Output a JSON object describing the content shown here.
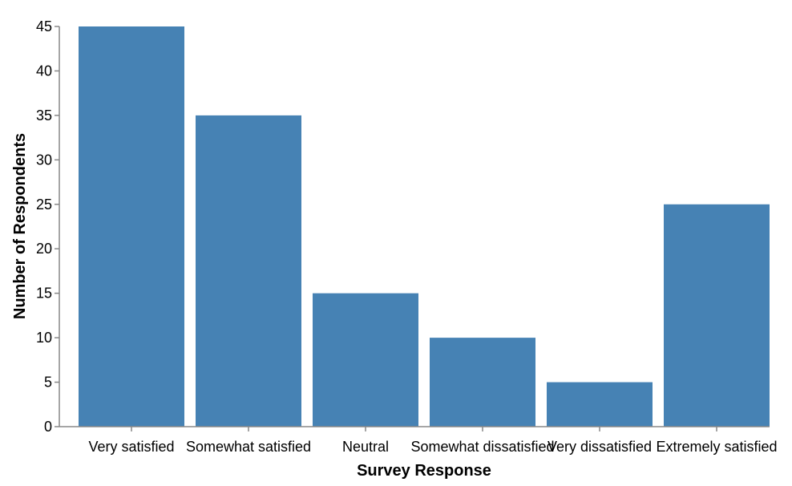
{
  "chart_data": {
    "type": "bar",
    "categories": [
      "Very satisfied",
      "Somewhat satisfied",
      "Neutral",
      "Somewhat dissatisfied",
      "Very dissatisfied",
      "Extremely satisfied"
    ],
    "values": [
      45,
      35,
      15,
      10,
      5,
      25
    ],
    "xlabel": "Survey Response",
    "ylabel": "Number of Respondents",
    "ylim": [
      0,
      45
    ],
    "yticks": [
      0,
      5,
      10,
      15,
      20,
      25,
      30,
      35,
      40,
      45
    ],
    "bar_color": "#4682b4",
    "grid": false
  }
}
